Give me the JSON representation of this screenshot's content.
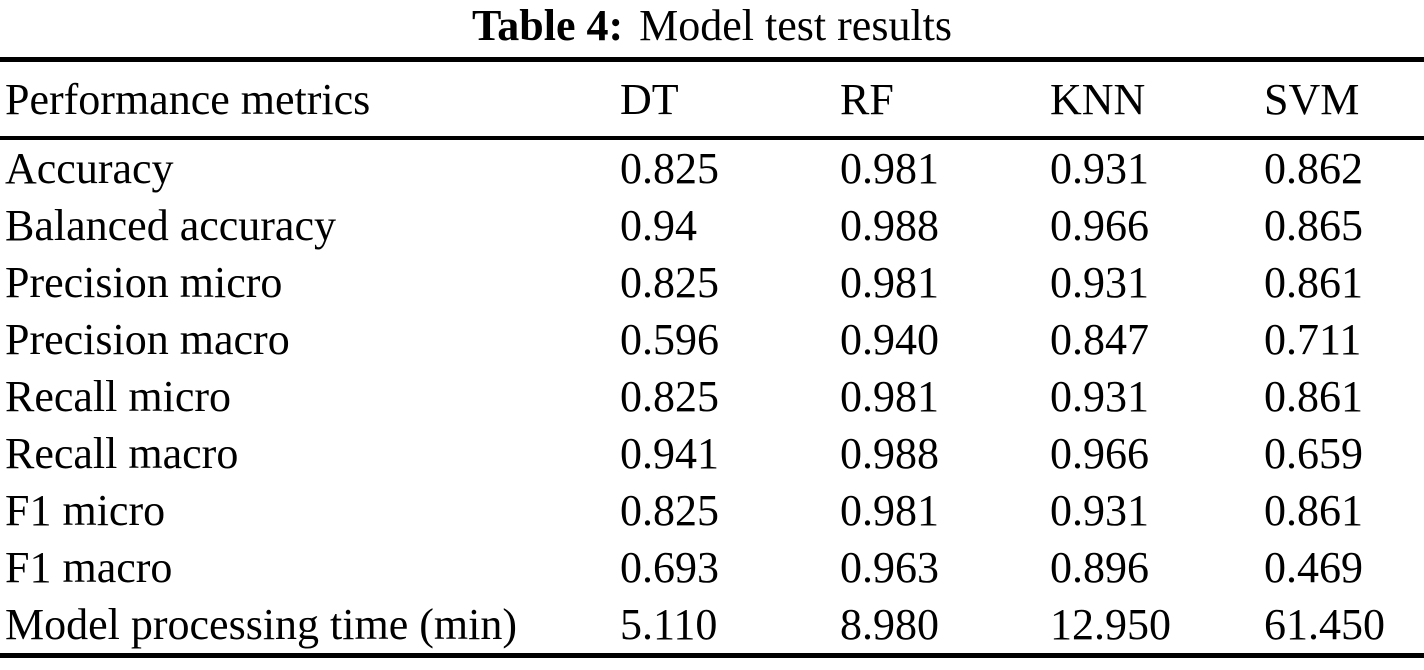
{
  "caption": {
    "label": "Table 4:",
    "text": "Model test results"
  },
  "table": {
    "columns": [
      "Performance metrics",
      "DT",
      "RF",
      "KNN",
      "SVM"
    ],
    "rows": [
      {
        "metric": "Accuracy",
        "values": [
          "0.825",
          "0.981",
          "0.931",
          "0.862"
        ]
      },
      {
        "metric": "Balanced accuracy",
        "values": [
          "0.94",
          "0.988",
          "0.966",
          "0.865"
        ]
      },
      {
        "metric": "Precision micro",
        "values": [
          "0.825",
          "0.981",
          "0.931",
          "0.861"
        ]
      },
      {
        "metric": "Precision macro",
        "values": [
          "0.596",
          "0.940",
          "0.847",
          "0.711"
        ]
      },
      {
        "metric": "Recall micro",
        "values": [
          "0.825",
          "0.981",
          "0.931",
          "0.861"
        ]
      },
      {
        "metric": "Recall macro",
        "values": [
          "0.941",
          "0.988",
          "0.966",
          "0.659"
        ]
      },
      {
        "metric": "F1 micro",
        "values": [
          "0.825",
          "0.981",
          "0.931",
          "0.861"
        ]
      },
      {
        "metric": "F1 macro",
        "values": [
          "0.693",
          "0.963",
          "0.896",
          "0.469"
        ]
      },
      {
        "metric": "Model processing time (min)",
        "values": [
          "5.110",
          "8.980",
          "12.950",
          "61.450"
        ]
      }
    ]
  },
  "chart_data": {
    "type": "table",
    "title": "Table 4: Model test results",
    "categories": [
      "Accuracy",
      "Balanced accuracy",
      "Precision micro",
      "Precision macro",
      "Recall micro",
      "Recall macro",
      "F1 micro",
      "F1 macro",
      "Model processing time (min)"
    ],
    "series": [
      {
        "name": "DT",
        "values": [
          0.825,
          0.94,
          0.825,
          0.596,
          0.825,
          0.941,
          0.825,
          0.693,
          5.11
        ]
      },
      {
        "name": "RF",
        "values": [
          0.981,
          0.988,
          0.981,
          0.94,
          0.981,
          0.988,
          0.981,
          0.963,
          8.98
        ]
      },
      {
        "name": "KNN",
        "values": [
          0.931,
          0.966,
          0.931,
          0.847,
          0.931,
          0.966,
          0.931,
          0.896,
          12.95
        ]
      },
      {
        "name": "SVM",
        "values": [
          0.862,
          0.865,
          0.861,
          0.711,
          0.861,
          0.659,
          0.861,
          0.469,
          61.45
        ]
      }
    ]
  }
}
